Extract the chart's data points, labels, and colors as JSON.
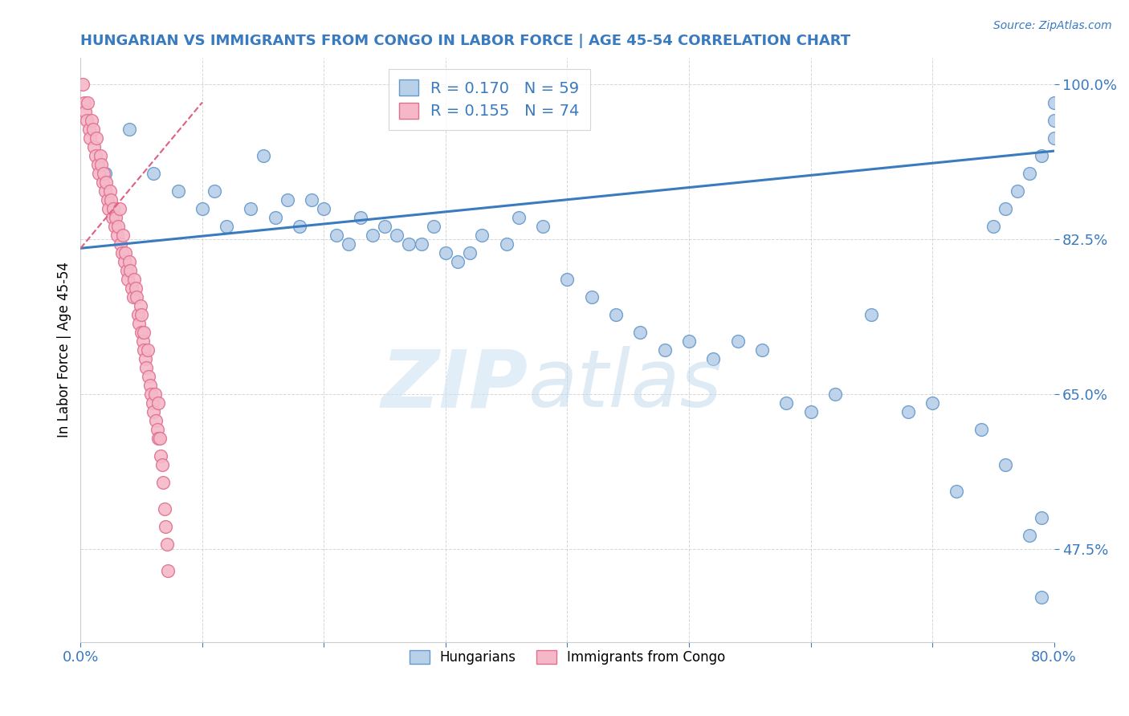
{
  "title": "HUNGARIAN VS IMMIGRANTS FROM CONGO IN LABOR FORCE | AGE 45-54 CORRELATION CHART",
  "source": "Source: ZipAtlas.com",
  "xlabel": "",
  "ylabel": "In Labor Force | Age 45-54",
  "xlim": [
    0.0,
    0.8
  ],
  "ylim": [
    0.37,
    1.03
  ],
  "xticks": [
    0.0,
    0.1,
    0.2,
    0.3,
    0.4,
    0.5,
    0.6,
    0.7,
    0.8
  ],
  "ytick_positions": [
    0.475,
    0.65,
    0.825,
    1.0
  ],
  "ytick_labels": [
    "47.5%",
    "65.0%",
    "82.5%",
    "100.0%"
  ],
  "blue_R": 0.17,
  "blue_N": 59,
  "pink_R": 0.155,
  "pink_N": 74,
  "blue_color": "#b8d0e8",
  "pink_color": "#f5b8c8",
  "blue_edge_color": "#6699cc",
  "pink_edge_color": "#e07090",
  "blue_line_color": "#3a7abf",
  "pink_line_color": "#e06080",
  "axis_color": "#3a7abf",
  "legend_blue_label": "Hungarians",
  "legend_pink_label": "Immigrants from Congo",
  "blue_scatter_x": [
    0.02,
    0.04,
    0.06,
    0.08,
    0.1,
    0.11,
    0.12,
    0.14,
    0.15,
    0.16,
    0.17,
    0.18,
    0.19,
    0.2,
    0.21,
    0.22,
    0.23,
    0.24,
    0.25,
    0.26,
    0.27,
    0.28,
    0.29,
    0.3,
    0.31,
    0.32,
    0.33,
    0.35,
    0.36,
    0.38,
    0.4,
    0.42,
    0.44,
    0.46,
    0.48,
    0.5,
    0.52,
    0.54,
    0.56,
    0.58,
    0.6,
    0.62,
    0.65,
    0.68,
    0.7,
    0.72,
    0.74,
    0.76,
    0.78,
    0.79,
    0.79,
    0.8,
    0.8,
    0.8,
    0.79,
    0.78,
    0.77,
    0.76,
    0.75
  ],
  "blue_scatter_y": [
    0.9,
    0.95,
    0.9,
    0.88,
    0.86,
    0.88,
    0.84,
    0.86,
    0.92,
    0.85,
    0.87,
    0.84,
    0.87,
    0.86,
    0.83,
    0.82,
    0.85,
    0.83,
    0.84,
    0.83,
    0.82,
    0.82,
    0.84,
    0.81,
    0.8,
    0.81,
    0.83,
    0.82,
    0.85,
    0.84,
    0.78,
    0.76,
    0.74,
    0.72,
    0.7,
    0.71,
    0.69,
    0.71,
    0.7,
    0.64,
    0.63,
    0.65,
    0.74,
    0.63,
    0.64,
    0.54,
    0.61,
    0.57,
    0.49,
    0.51,
    0.42,
    0.98,
    0.96,
    0.94,
    0.92,
    0.9,
    0.88,
    0.86,
    0.84
  ],
  "pink_scatter_x": [
    0.002,
    0.003,
    0.004,
    0.005,
    0.006,
    0.007,
    0.008,
    0.009,
    0.01,
    0.011,
    0.012,
    0.013,
    0.014,
    0.015,
    0.016,
    0.017,
    0.018,
    0.019,
    0.02,
    0.021,
    0.022,
    0.023,
    0.024,
    0.025,
    0.026,
    0.027,
    0.028,
    0.029,
    0.03,
    0.031,
    0.032,
    0.033,
    0.034,
    0.035,
    0.036,
    0.037,
    0.038,
    0.039,
    0.04,
    0.041,
    0.042,
    0.043,
    0.044,
    0.045,
    0.046,
    0.047,
    0.048,
    0.049,
    0.05,
    0.05,
    0.051,
    0.052,
    0.052,
    0.053,
    0.054,
    0.055,
    0.056,
    0.057,
    0.058,
    0.059,
    0.06,
    0.061,
    0.062,
    0.063,
    0.064,
    0.064,
    0.065,
    0.066,
    0.067,
    0.068,
    0.069,
    0.07,
    0.071,
    0.072
  ],
  "pink_scatter_y": [
    1.0,
    0.98,
    0.97,
    0.96,
    0.98,
    0.95,
    0.94,
    0.96,
    0.95,
    0.93,
    0.92,
    0.94,
    0.91,
    0.9,
    0.92,
    0.91,
    0.89,
    0.9,
    0.88,
    0.89,
    0.87,
    0.86,
    0.88,
    0.87,
    0.85,
    0.86,
    0.84,
    0.85,
    0.83,
    0.84,
    0.86,
    0.82,
    0.81,
    0.83,
    0.8,
    0.81,
    0.79,
    0.78,
    0.8,
    0.79,
    0.77,
    0.76,
    0.78,
    0.77,
    0.76,
    0.74,
    0.73,
    0.75,
    0.72,
    0.74,
    0.71,
    0.7,
    0.72,
    0.69,
    0.68,
    0.7,
    0.67,
    0.66,
    0.65,
    0.64,
    0.63,
    0.65,
    0.62,
    0.61,
    0.64,
    0.6,
    0.6,
    0.58,
    0.57,
    0.55,
    0.52,
    0.5,
    0.48,
    0.45
  ],
  "blue_trend_x0": 0.0,
  "blue_trend_y0": 0.815,
  "blue_trend_x1": 0.8,
  "blue_trend_y1": 0.925,
  "pink_trend_x0": 0.0,
  "pink_trend_y0": 0.815,
  "pink_trend_x1": 0.1,
  "pink_trend_y1": 0.98
}
